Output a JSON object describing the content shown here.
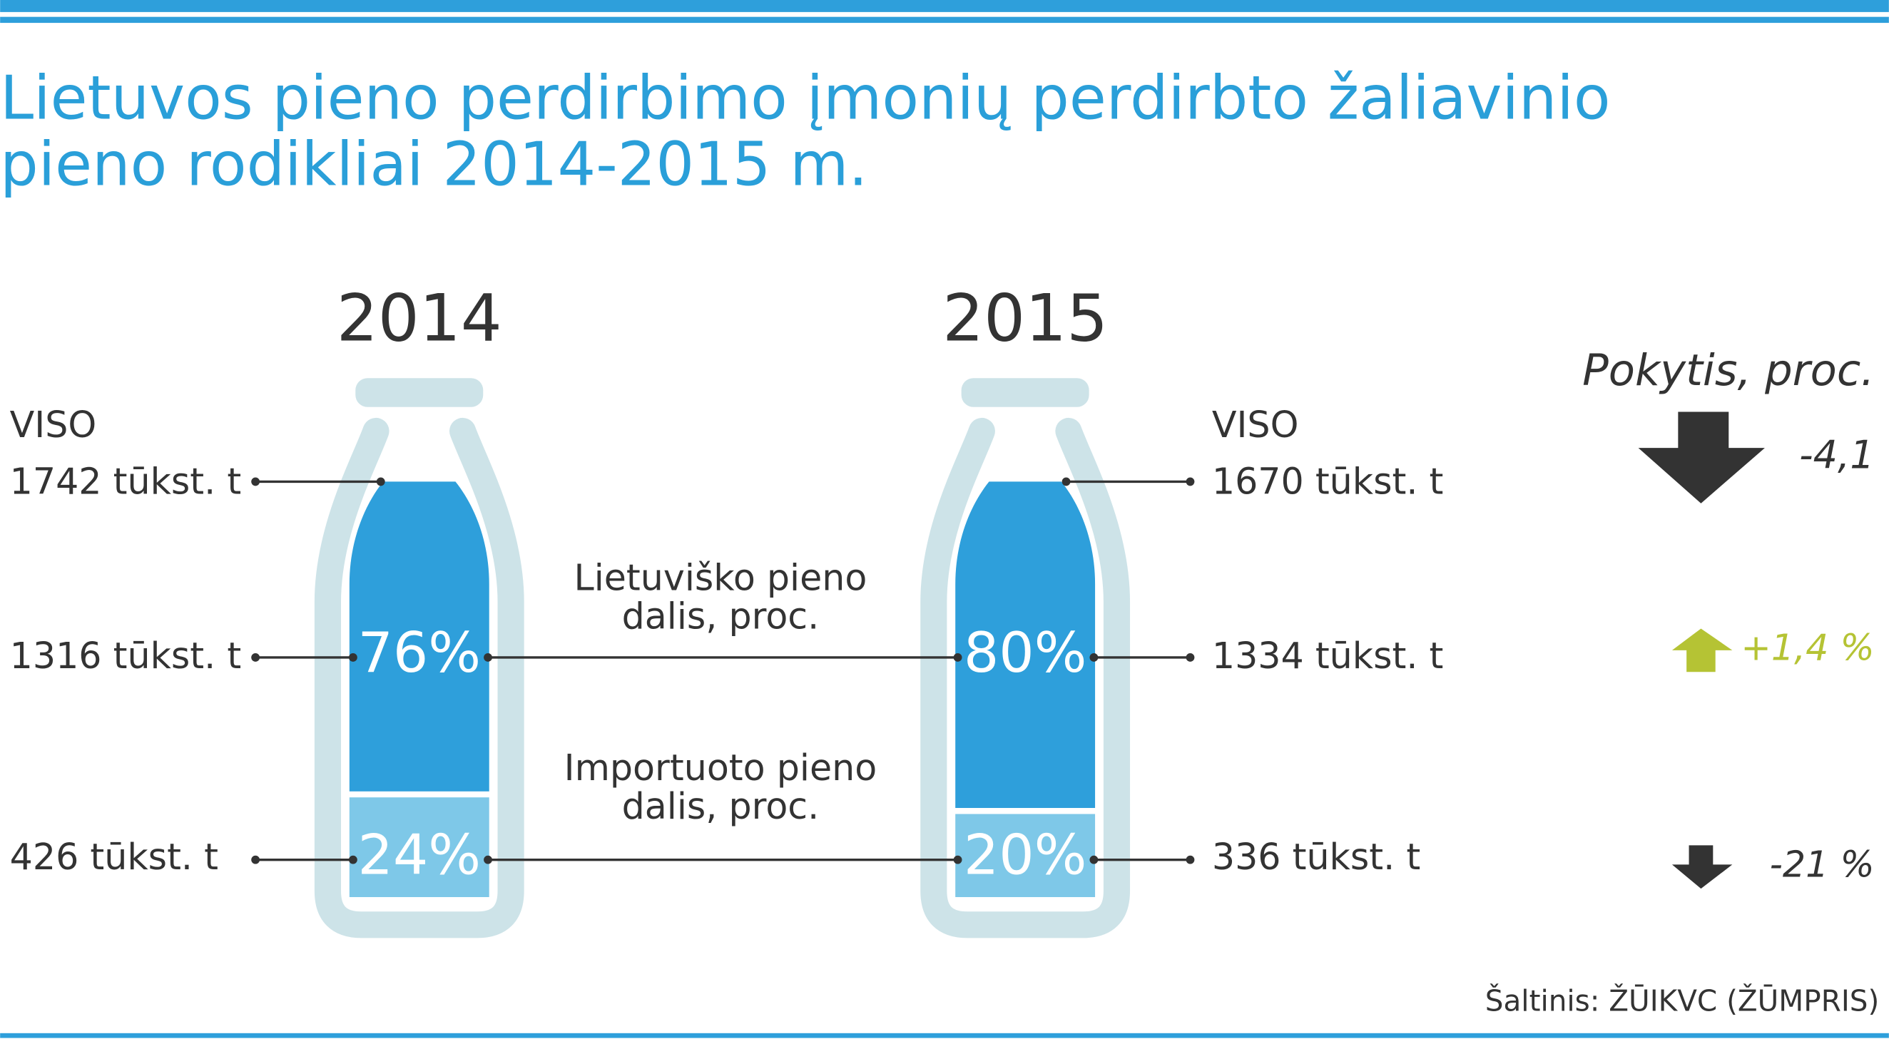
{
  "title": [
    "Lietuvos pieno perdirbimo įmonių perdirbto žaliavinio",
    "pieno rodikliai 2014-2015 m."
  ],
  "years": [
    {
      "year": "2014",
      "total_label": "VISO",
      "total": "1742 tūkst. t",
      "lithuanian": {
        "amount": "1316 tūkst. t",
        "share": {
          "value": 76,
          "label": "76%"
        }
      },
      "imported": {
        "amount": "426 tūkst. t",
        "share": {
          "value": 24,
          "label": "24%"
        }
      }
    },
    {
      "year": "2015",
      "total_label": "VISO",
      "total": "1670 tūkst. t",
      "lithuanian": {
        "amount": "1334 tūkst. t",
        "share": {
          "value": 80,
          "label": "80%"
        }
      },
      "imported": {
        "amount": "336 tūkst. t",
        "share": {
          "value": 20,
          "label": "20%"
        }
      }
    }
  ],
  "middle_labels": {
    "lithuanian": [
      "Lietuviško pieno",
      "dalis, proc."
    ],
    "imported": [
      "Importuoto pieno",
      "dalis, proc."
    ]
  },
  "change": {
    "title": "Pokytis, proc.",
    "total": "-4,1",
    "lithuanian": "+1,4 %",
    "imported": "-21 %"
  },
  "source": "Šaltinis: ŽŪIKVC (ŽŪMPRIS)"
}
